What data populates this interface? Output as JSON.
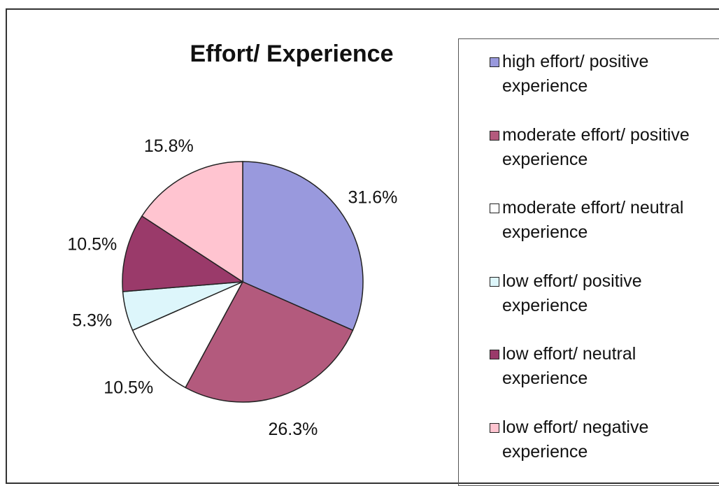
{
  "chart_data": {
    "type": "pie",
    "title": "Effort/ Experience",
    "categories": [
      "high effort/ positive experience",
      "moderate effort/ positive experience",
      "moderate effort/ neutral experience",
      "low effort/ positive experience",
      "low effort/ neutral experience",
      "low effort/ negative experience"
    ],
    "values": [
      31.6,
      26.3,
      10.5,
      5.3,
      10.5,
      15.8
    ],
    "value_labels": [
      "31.6%",
      "26.3%",
      "10.5%",
      "5.3%",
      "10.5%",
      "15.8%"
    ],
    "colors": [
      "#9999dd",
      "#b35a7d",
      "#ffffff",
      "#ddf6fb",
      "#9a3a6a",
      "#ffc4d0"
    ],
    "legend": "right"
  }
}
